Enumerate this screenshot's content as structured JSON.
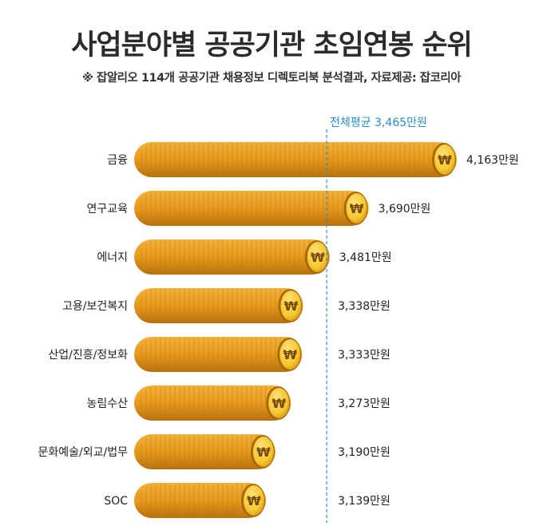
{
  "title": "사업분야별 공공기관 초임연봉 순위",
  "subtitle": "※ 잡알리오 114개 공공기관 채용정보 디렉토리북 분석결과, 자료제공: 잡코리아",
  "colors": {
    "coin_light": "#f3b23a",
    "coin_mid": "#e69a1c",
    "coin_dark": "#b8700c",
    "coin_face": "#f6c830",
    "average_line": "#2a8fc9",
    "text": "#222222"
  },
  "chart_data": {
    "type": "bar",
    "orientation": "horizontal",
    "categories": [
      "금융",
      "연구교육",
      "에너지",
      "고용/보건복지",
      "산업/진흥/정보화",
      "농림수산",
      "문화예술/외교/법무",
      "SOC"
    ],
    "values": [
      4163,
      3690,
      3481,
      3338,
      3333,
      3273,
      3190,
      3139
    ],
    "value_labels": [
      "4,163만원",
      "3,690만원",
      "3,481만원",
      "3,338만원",
      "3,333만원",
      "3,273만원",
      "3,190만원",
      "3,139만원"
    ],
    "unit": "만원",
    "coin_symbol": "₩",
    "average": {
      "value": 3465,
      "label": "전체평균 3,465만원"
    }
  }
}
